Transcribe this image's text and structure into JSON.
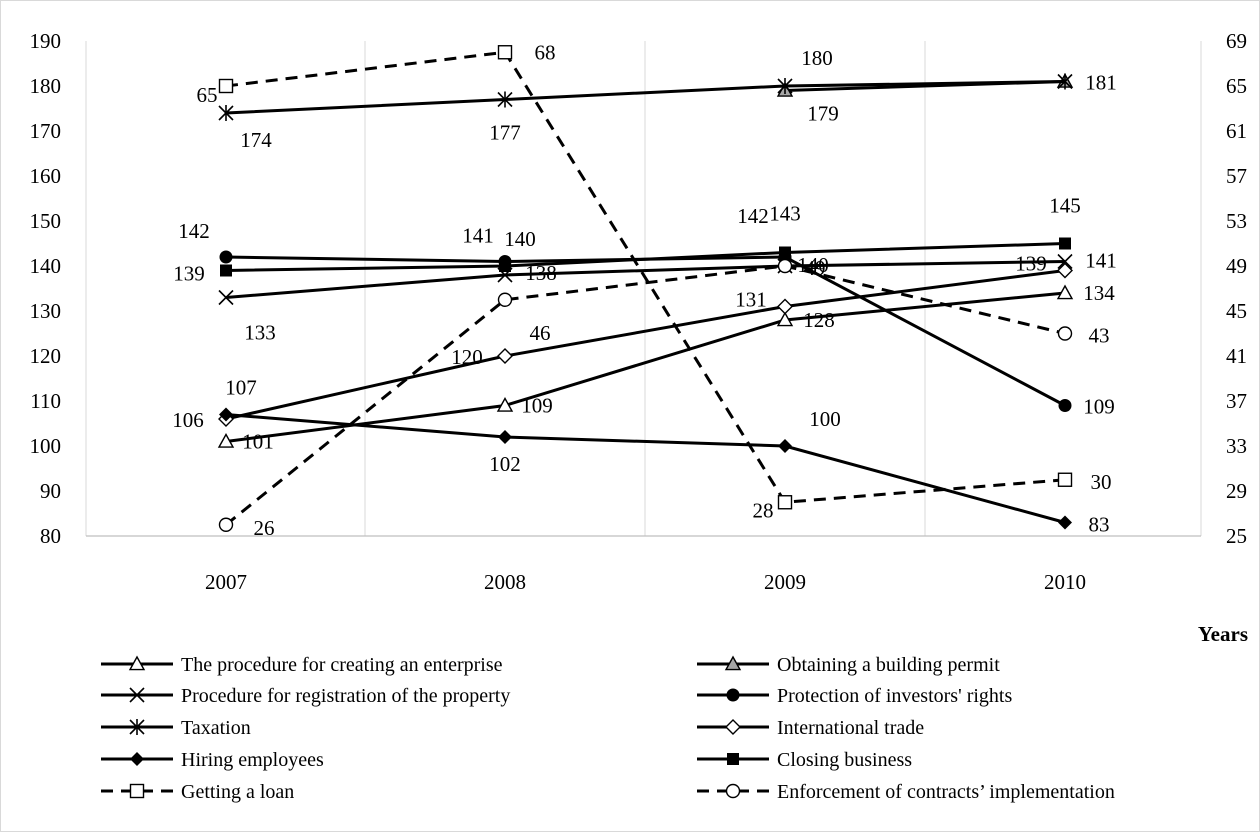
{
  "chart_data": {
    "type": "line",
    "x": [
      "2007",
      "2008",
      "2009",
      "2010"
    ],
    "xlabel": "Years",
    "ylim_left": [
      80,
      190
    ],
    "yticks_left": [
      "80",
      "90",
      "100",
      "110",
      "120",
      "130",
      "140",
      "150",
      "160",
      "170",
      "180",
      "190"
    ],
    "ylim_right": [
      25,
      69
    ],
    "yticks_right": [
      "25",
      "29",
      "33",
      "37",
      "41",
      "45",
      "49",
      "53",
      "57",
      "61",
      "65",
      "69"
    ],
    "grid": "vertical gridlines",
    "legend_position": "bottom",
    "series": [
      {
        "name": "The procedure for creating an enterprise",
        "values": [
          101,
          109,
          128,
          134
        ],
        "axis": "left",
        "marker": "triangle-open",
        "dash": false,
        "labels": [
          "101",
          "109",
          "128",
          "134"
        ]
      },
      {
        "name": "Obtaining a building permit",
        "values": [
          null,
          null,
          179,
          181
        ],
        "axis": "left",
        "marker": "triangle-gray",
        "dash": false,
        "labels": [
          "",
          "",
          "179",
          ""
        ]
      },
      {
        "name": "Procedure for registration of the property",
        "values": [
          133,
          138,
          140,
          141
        ],
        "axis": "left",
        "marker": "x",
        "dash": false,
        "labels": [
          "133",
          "138",
          "140",
          "141"
        ]
      },
      {
        "name": "Protection of investors' rights",
        "values": [
          142,
          141,
          142,
          109
        ],
        "axis": "left",
        "marker": "circle-filled",
        "dash": false,
        "labels": [
          "142",
          "141",
          "142",
          "109"
        ]
      },
      {
        "name": "Taxation",
        "values": [
          174,
          177,
          180,
          181
        ],
        "axis": "left",
        "marker": "star",
        "dash": false,
        "labels": [
          "174",
          "177",
          "180",
          "181"
        ]
      },
      {
        "name": "International trade",
        "values": [
          106,
          120,
          131,
          139
        ],
        "axis": "left",
        "marker": "diamond-open",
        "dash": false,
        "labels": [
          "106",
          "120",
          "131",
          "139"
        ]
      },
      {
        "name": "Hiring employees",
        "values": [
          107,
          102,
          100,
          83
        ],
        "axis": "left",
        "marker": "diamond-filled",
        "dash": false,
        "labels": [
          "107",
          "102",
          "100",
          "83"
        ]
      },
      {
        "name": "Closing business",
        "values": [
          139,
          140,
          143,
          145
        ],
        "axis": "left",
        "marker": "square-filled",
        "dash": false,
        "labels": [
          "139",
          "140",
          "143",
          "145"
        ]
      },
      {
        "name": "Getting a loan",
        "values": [
          65,
          68,
          28,
          30
        ],
        "axis": "right",
        "marker": "square-open",
        "dash": true,
        "labels": [
          "65",
          "68",
          "28",
          "30"
        ]
      },
      {
        "name": "Enforcement  of contracts’ implementation",
        "values": [
          26,
          46,
          49,
          43
        ],
        "axis": "right",
        "marker": "circle-open",
        "dash": true,
        "labels": [
          "26",
          "46",
          "49",
          "43"
        ]
      }
    ]
  }
}
